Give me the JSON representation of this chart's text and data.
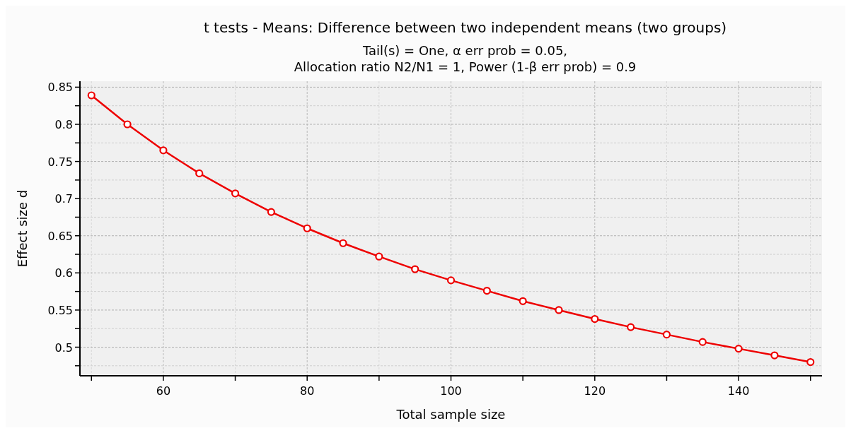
{
  "chart_data": {
    "type": "line",
    "title": "t tests - Means: Difference between two independent means (two groups)",
    "subtitle": "Tail(s) = One, α err prob = 0.05,\nAllocation ratio N2/N1 = 1, Power (1-β err prob) = 0.9",
    "xlabel": "Total sample size",
    "ylabel": "Effect size d",
    "x": [
      50,
      55,
      60,
      65,
      70,
      75,
      80,
      85,
      90,
      95,
      100,
      105,
      110,
      115,
      120,
      125,
      130,
      135,
      140,
      145,
      150
    ],
    "series": [
      {
        "color": "#ee0000",
        "values": [
          0.839,
          0.8,
          0.765,
          0.734,
          0.707,
          0.682,
          0.66,
          0.64,
          0.622,
          0.605,
          0.59,
          0.576,
          0.562,
          0.55,
          0.538,
          0.527,
          0.517,
          0.507,
          0.498,
          0.489,
          0.48
        ]
      }
    ],
    "xlim": [
      48.4,
      151.6
    ],
    "ylim": [
      0.4615,
      0.858
    ],
    "xticks": [
      {
        "value": 50,
        "label": null
      },
      60,
      {
        "value": 70,
        "label": null
      },
      80,
      {
        "value": 90,
        "label": null
      },
      100,
      {
        "value": 110,
        "label": null
      },
      120,
      {
        "value": 130,
        "label": null
      },
      140,
      {
        "value": 150,
        "label": null
      }
    ],
    "yticks": [
      {
        "value": 0.475,
        "label": null
      },
      0.5,
      {
        "value": 0.525,
        "label": null
      },
      0.55,
      {
        "value": 0.575,
        "label": null
      },
      0.6,
      {
        "value": 0.625,
        "label": null
      },
      0.65,
      {
        "value": 0.675,
        "label": null
      },
      0.7,
      {
        "value": 0.725,
        "label": null
      },
      0.75,
      {
        "value": 0.775,
        "label": null
      },
      0.8,
      {
        "value": 0.825,
        "label": null
      },
      0.85
    ],
    "grid": true,
    "marker": "circle",
    "line_style": "solid"
  }
}
